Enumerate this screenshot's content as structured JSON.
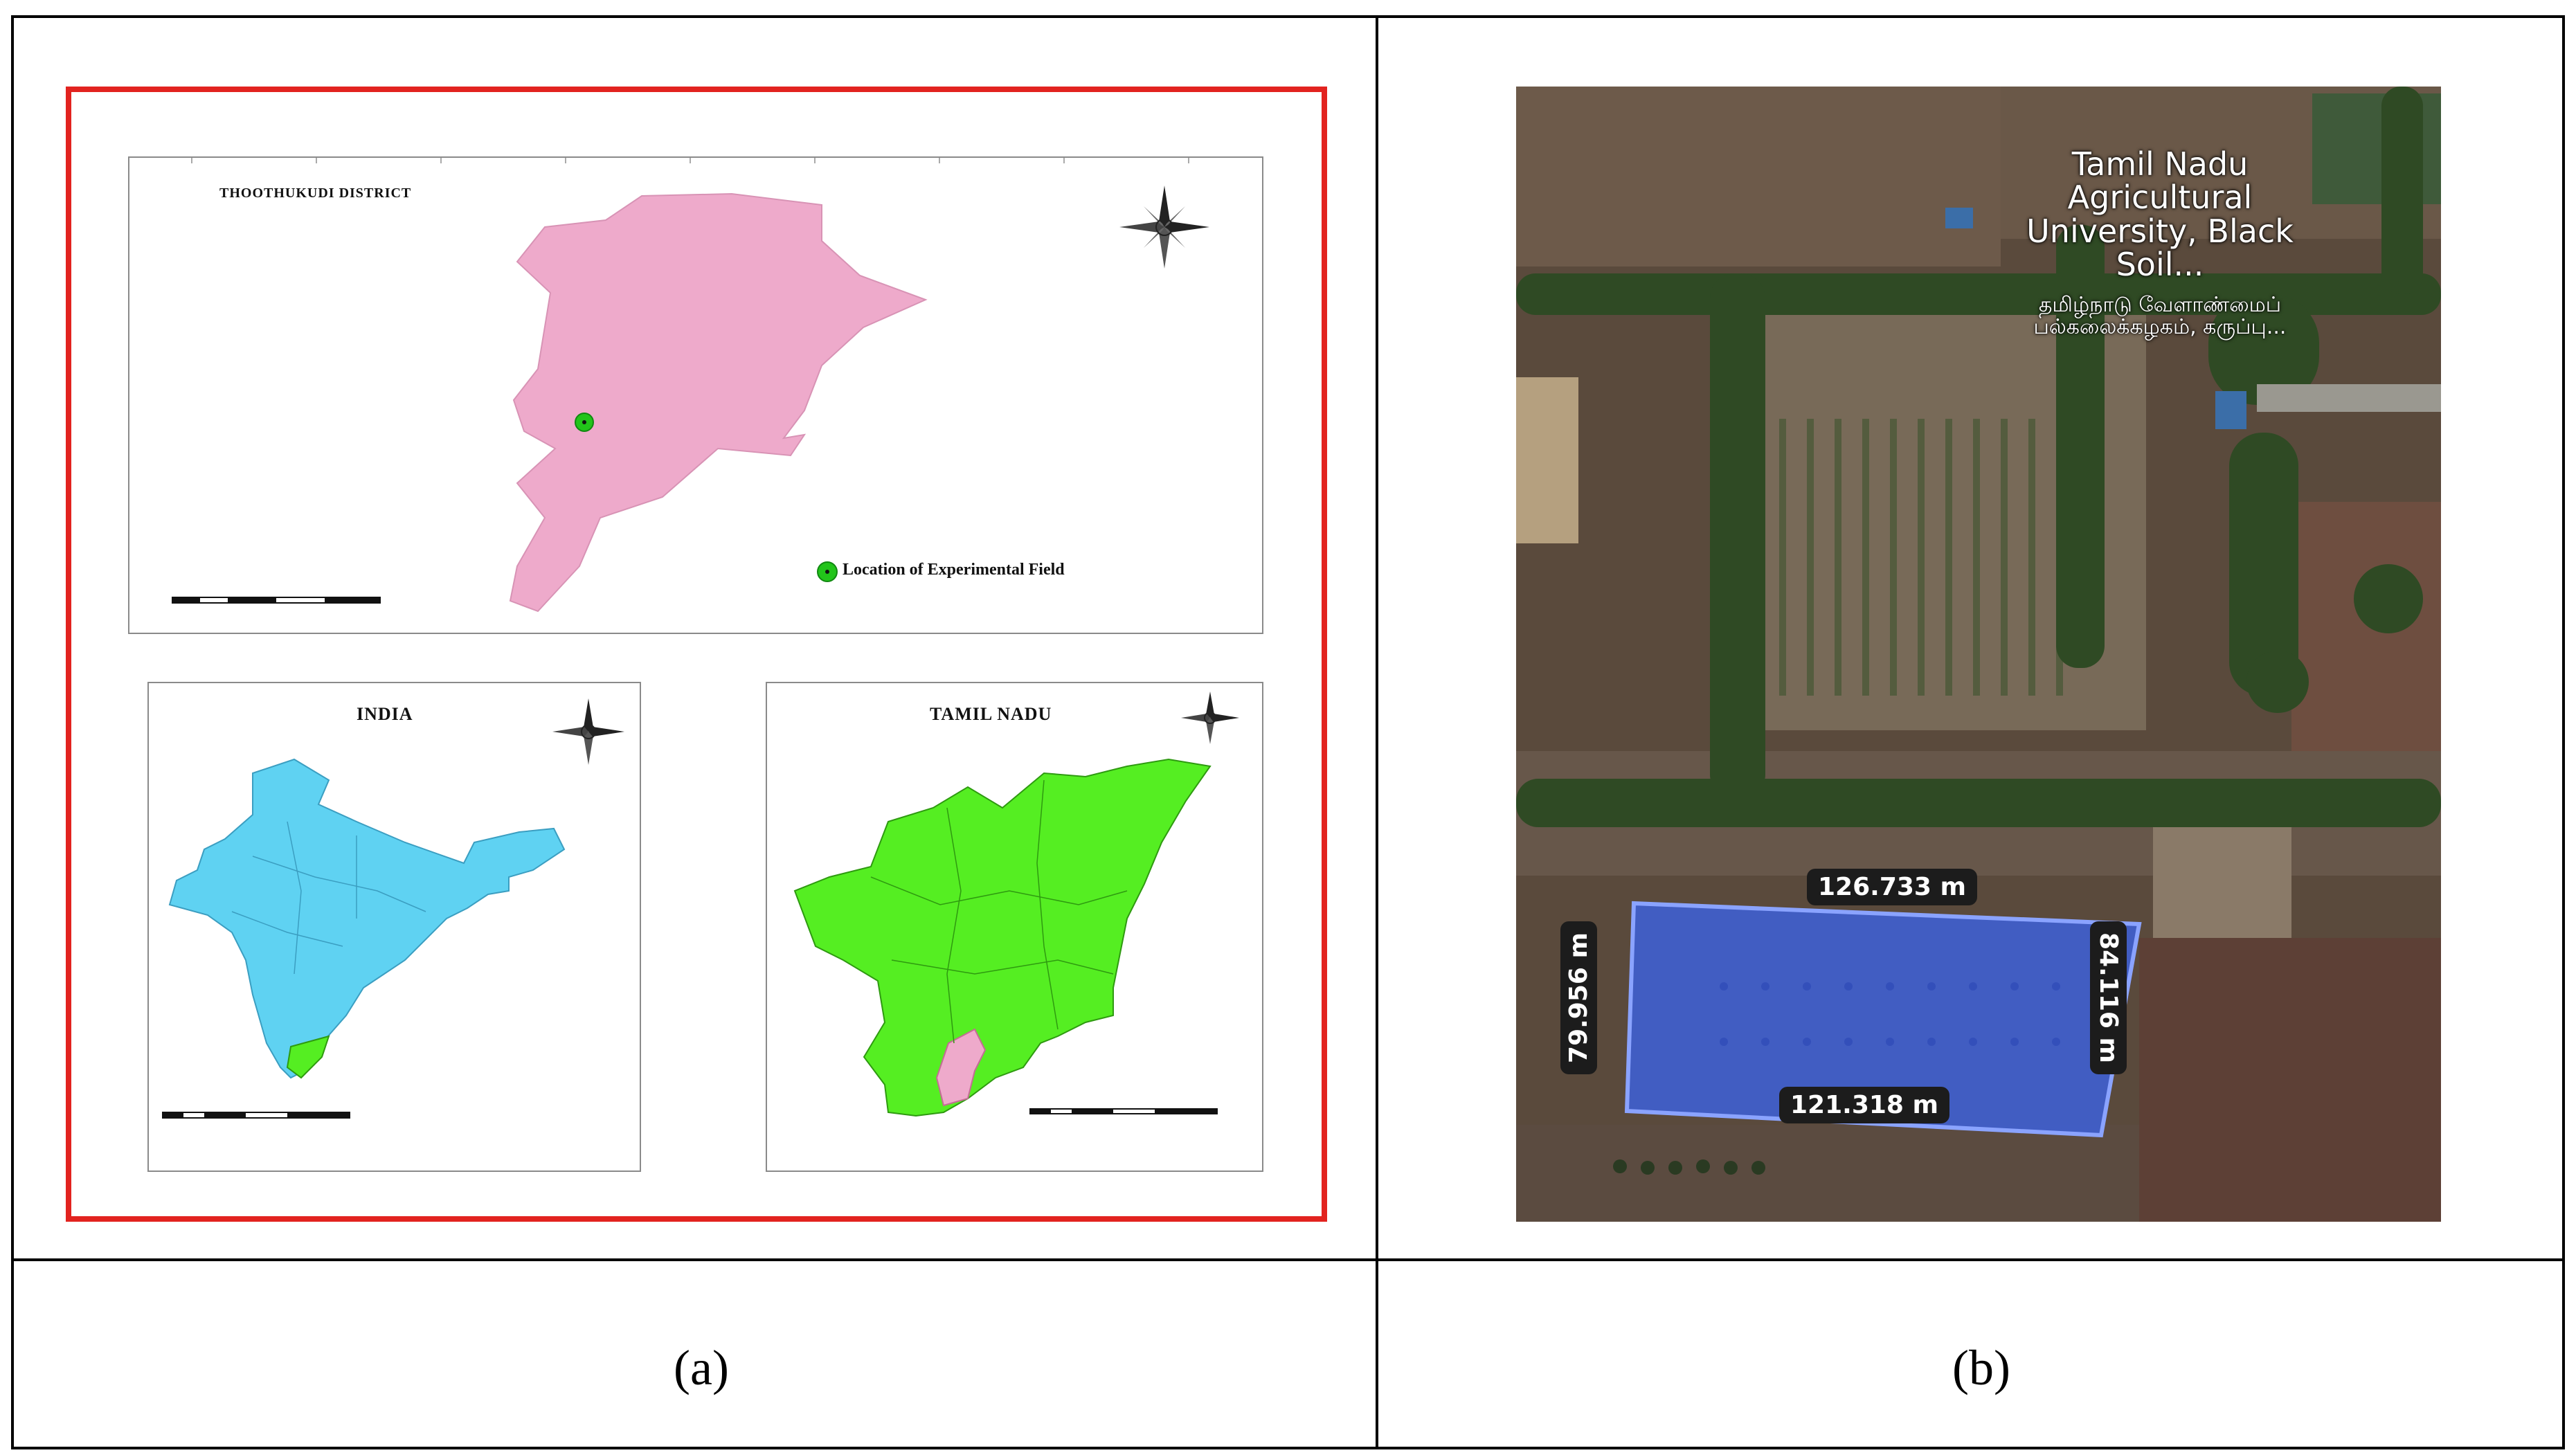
{
  "captions": {
    "a": "(a)",
    "b": "(b)"
  },
  "panel_a": {
    "district_title": "THOOTHUKUDI DISTRICT",
    "india_title": "INDIA",
    "tamilnadu_title": "TAMIL NADU",
    "legend_label": "Location of Experimental Field",
    "colors": {
      "frame": "#e2231f",
      "district": "#eeaacb",
      "india": "#5fd2f2",
      "tamil_nadu": "#55ee22",
      "field_marker": "#22c41a"
    }
  },
  "panel_b": {
    "place_label_en": "Tamil Nadu Agricultural University, Black Soil...",
    "place_label_ta": "தமிழ்நாடு வேளாண்மைப் பல்கலைக்கழகம், கருப்பு...",
    "measurements": {
      "top": "126.733 m",
      "left": "79.956 m",
      "right": "84.116 m",
      "bottom": "121.318 m"
    },
    "colors": {
      "plot_fill": "#3a63e8"
    }
  }
}
